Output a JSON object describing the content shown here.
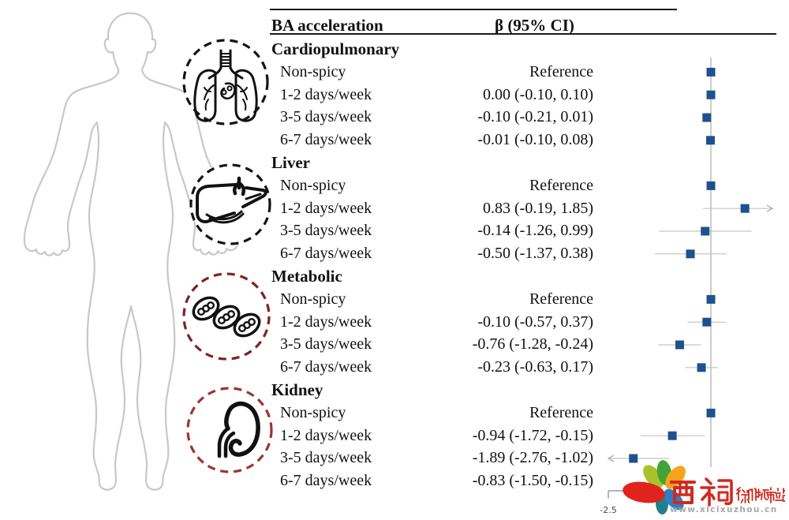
{
  "header": {
    "col_outcome": "BA acceleration",
    "col_effect": "β (95% CI)"
  },
  "chart_data": {
    "type": "scatter",
    "subtype": "forest-plot",
    "title": "BA acceleration",
    "effect_column_label": "β (95% CI)",
    "marker_color": "#1e518e",
    "ref_line_value": 0,
    "x_axis": {
      "min": -2.5,
      "max": 1.5,
      "visible_tick": {
        "value": -2.5,
        "label": "-2.5"
      }
    },
    "groups": [
      {
        "name": "Cardiopulmonary",
        "icon": "lungs-icon",
        "circle_color": "#141414",
        "rows": [
          {
            "label": "Non-spicy",
            "display": "Reference",
            "beta": 0,
            "lo": null,
            "hi": null
          },
          {
            "label": "1-2 days/week",
            "display": "0.00 (-0.10, 0.10)",
            "beta": 0.0,
            "lo": -0.1,
            "hi": 0.1
          },
          {
            "label": "3-5 days/week",
            "display": "-0.10 (-0.21, 0.01)",
            "beta": -0.1,
            "lo": -0.21,
            "hi": 0.01
          },
          {
            "label": "6-7 days/week",
            "display": "-0.01 (-0.10, 0.08)",
            "beta": -0.01,
            "lo": -0.1,
            "hi": 0.08
          }
        ]
      },
      {
        "name": "Liver",
        "icon": "liver-icon",
        "circle_color": "#141414",
        "rows": [
          {
            "label": "Non-spicy",
            "display": "Reference",
            "beta": 0,
            "lo": null,
            "hi": null
          },
          {
            "label": "1-2 days/week",
            "display": "0.83 (-0.19, 1.85)",
            "beta": 0.83,
            "lo": -0.19,
            "hi": 1.85
          },
          {
            "label": "3-5 days/week",
            "display": "-0.14 (-1.26, 0.99)",
            "beta": -0.14,
            "lo": -1.26,
            "hi": 0.99
          },
          {
            "label": "6-7 days/week",
            "display": "-0.50 (-1.37, 0.38)",
            "beta": -0.5,
            "lo": -1.37,
            "hi": 0.38
          }
        ]
      },
      {
        "name": "Metabolic",
        "icon": "cells-icon",
        "circle_color": "#7e2222",
        "rows": [
          {
            "label": "Non-spicy",
            "display": "Reference",
            "beta": 0,
            "lo": null,
            "hi": null
          },
          {
            "label": "1-2 days/week",
            "display": "-0.10 (-0.57, 0.37)",
            "beta": -0.1,
            "lo": -0.57,
            "hi": 0.37
          },
          {
            "label": "3-5 days/week",
            "display": "-0.76 (-1.28, -0.24)",
            "beta": -0.76,
            "lo": -1.28,
            "hi": -0.24
          },
          {
            "label": "6-7 days/week",
            "display": "-0.23 (-0.63, 0.17)",
            "beta": -0.23,
            "lo": -0.63,
            "hi": 0.17
          }
        ]
      },
      {
        "name": "Kidney",
        "icon": "kidney-icon",
        "circle_color": "#9c3434",
        "rows": [
          {
            "label": "Non-spicy",
            "display": "Reference",
            "beta": 0,
            "lo": null,
            "hi": null
          },
          {
            "label": "1-2 days/week",
            "display": "-0.94 (-1.72, -0.15)",
            "beta": -0.94,
            "lo": -1.72,
            "hi": -0.15
          },
          {
            "label": "3-5 days/week",
            "display": "-1.89 (-2.76, -1.02)",
            "beta": -1.89,
            "lo": -2.76,
            "hi": -1.02
          },
          {
            "label": "6-7 days/week",
            "display": "-0.83 (-1.50, -0.15)",
            "beta": -0.83,
            "lo": -1.5,
            "hi": -0.15
          }
        ]
      }
    ]
  },
  "watermark": {
    "title": "西祠",
    "subtitle": "徐州城市站",
    "url": "www.xicixuzhou.cn",
    "text_color": "#cf2a20",
    "petal_colors": {
      "red": "#e0231d",
      "lime": "#a8c22c",
      "green": "#43a336",
      "orange": "#f8a31d",
      "blue": "#2f7dc2",
      "teal": "#20808f"
    }
  }
}
